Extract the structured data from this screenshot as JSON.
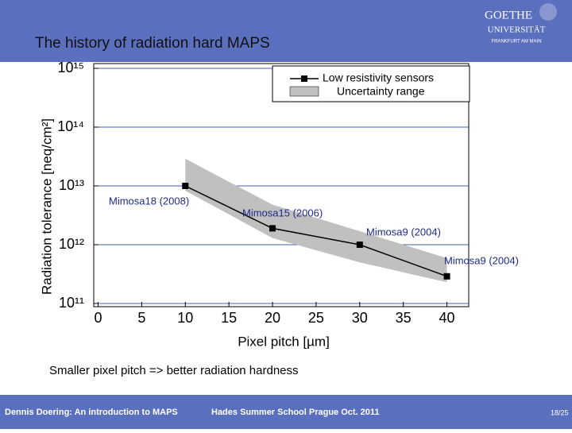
{
  "header": {
    "title": "The history of radiation hard MAPS",
    "logo": [
      "GOETHE",
      "UNIVERSITÄT",
      "FRANKFURT AM MAIN"
    ]
  },
  "chart_data": {
    "type": "line",
    "y_label": "Radiation tolerance [neq/cm²]",
    "x_label": "Pixel pitch [µm]",
    "x": [
      10,
      20,
      30,
      40
    ],
    "series": [
      {
        "name": "Low resistivity sensors",
        "color": "#000000",
        "values": [
          10000000000000.0,
          1900000000000.0,
          1000000000000.0,
          290000000000.0
        ]
      }
    ],
    "band": {
      "name": "Uncertainty range",
      "color": "#c0c0c0",
      "upper": [
        29000000000000.0,
        4800000000000.0,
        1700000000000.0,
        590000000000.0
      ],
      "lower": [
        8300000000000.0,
        1300000000000.0,
        500000000000.0,
        230000000000.0
      ]
    },
    "point_labels": [
      "Mimosa18 (2008)",
      "Mimosa15 (2006)",
      "Mimosa9 (2004)",
      "Mimosa9 (2004)"
    ],
    "xlim": [
      -0.5,
      42.5
    ],
    "xticks": [
      0,
      5,
      10,
      15,
      20,
      25,
      30,
      35,
      40
    ],
    "ylim": [
      100000000000.0,
      1000000000000000.0
    ],
    "log_y": true,
    "yticks": [
      {
        "value": 100000000000.0,
        "label": "10¹¹"
      },
      {
        "value": 1000000000000.0,
        "label": "10¹²"
      },
      {
        "value": 10000000000000.0,
        "label": "10¹³"
      },
      {
        "value": 100000000000000.0,
        "label": "10¹⁴"
      },
      {
        "value": 1000000000000000.0,
        "label": "10¹⁵"
      }
    ],
    "grid": true,
    "grid_color": "#3f5bbf",
    "legend": "top-right"
  },
  "caption": "Smaller pixel pitch => better radiation hardness",
  "footer": {
    "left": "Dennis Doering: An introduction to MAPS",
    "center": "Hades Summer School Prague Oct. 2011",
    "page": "18/25"
  }
}
